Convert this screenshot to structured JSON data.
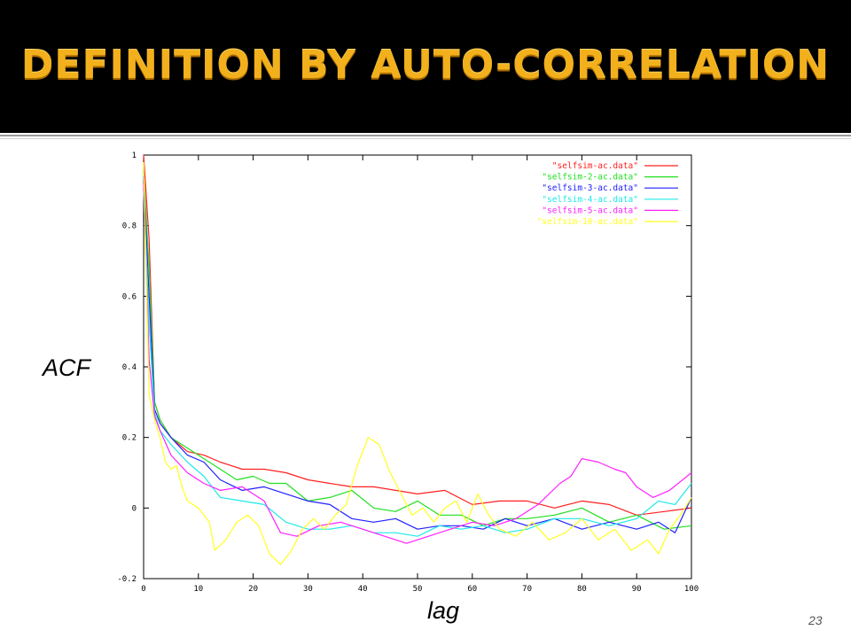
{
  "slide": {
    "title": "DEFINITION BY AUTO-CORRELATION",
    "page_number": "23",
    "colors": {
      "background": "#000000",
      "title": "#f2b01c"
    }
  },
  "chart_data": {
    "type": "line",
    "title": "",
    "xlabel": "lag",
    "ylabel": "ACF",
    "xlim": [
      0,
      100
    ],
    "ylim": [
      -0.2,
      1
    ],
    "x_ticks": [
      0,
      10,
      20,
      30,
      40,
      50,
      60,
      70,
      80,
      90,
      100
    ],
    "y_ticks": [
      -0.2,
      0,
      0.2,
      0.4,
      0.6,
      0.8,
      1
    ],
    "y_tick_labels": [
      "-0.2",
      "0",
      "0.2",
      "0.4",
      "0.6",
      "0.8",
      "1"
    ],
    "grid": false,
    "legend_position": "top-right",
    "series": [
      {
        "name": "\"selfsim-ac.data\"",
        "color": "#ff2020",
        "points": [
          [
            0,
            1
          ],
          [
            1,
            0.76
          ],
          [
            2,
            0.3
          ],
          [
            3,
            0.25
          ],
          [
            5,
            0.2
          ],
          [
            8,
            0.16
          ],
          [
            11,
            0.15
          ],
          [
            14,
            0.13
          ],
          [
            18,
            0.11
          ],
          [
            22,
            0.11
          ],
          [
            26,
            0.1
          ],
          [
            30,
            0.08
          ],
          [
            34,
            0.07
          ],
          [
            38,
            0.06
          ],
          [
            42,
            0.06
          ],
          [
            46,
            0.05
          ],
          [
            50,
            0.04
          ],
          [
            55,
            0.05
          ],
          [
            60,
            0.01
          ],
          [
            65,
            0.02
          ],
          [
            70,
            0.02
          ],
          [
            75,
            0.0
          ],
          [
            80,
            0.02
          ],
          [
            85,
            0.01
          ],
          [
            90,
            -0.02
          ],
          [
            95,
            -0.01
          ],
          [
            100,
            0.0
          ]
        ]
      },
      {
        "name": "\"selfsim-2-ac.data\"",
        "color": "#20e020",
        "points": [
          [
            0,
            0.95
          ],
          [
            1,
            0.68
          ],
          [
            2,
            0.3
          ],
          [
            3,
            0.25
          ],
          [
            5,
            0.2
          ],
          [
            8,
            0.17
          ],
          [
            11,
            0.14
          ],
          [
            14,
            0.11
          ],
          [
            17,
            0.08
          ],
          [
            20,
            0.09
          ],
          [
            23,
            0.07
          ],
          [
            26,
            0.07
          ],
          [
            30,
            0.02
          ],
          [
            34,
            0.03
          ],
          [
            38,
            0.05
          ],
          [
            42,
            0.0
          ],
          [
            46,
            -0.01
          ],
          [
            50,
            0.02
          ],
          [
            54,
            -0.02
          ],
          [
            58,
            -0.02
          ],
          [
            62,
            -0.05
          ],
          [
            66,
            -0.03
          ],
          [
            70,
            -0.03
          ],
          [
            75,
            -0.02
          ],
          [
            80,
            0.0
          ],
          [
            85,
            -0.04
          ],
          [
            90,
            -0.02
          ],
          [
            95,
            -0.06
          ],
          [
            100,
            -0.05
          ]
        ]
      },
      {
        "name": "\"selfsim-3-ac.data\"",
        "color": "#2020ff",
        "points": [
          [
            0,
            0.94
          ],
          [
            1,
            0.6
          ],
          [
            2,
            0.28
          ],
          [
            3,
            0.24
          ],
          [
            5,
            0.2
          ],
          [
            8,
            0.15
          ],
          [
            11,
            0.13
          ],
          [
            14,
            0.08
          ],
          [
            18,
            0.05
          ],
          [
            22,
            0.06
          ],
          [
            26,
            0.04
          ],
          [
            30,
            0.02
          ],
          [
            34,
            0.01
          ],
          [
            38,
            -0.03
          ],
          [
            42,
            -0.04
          ],
          [
            46,
            -0.03
          ],
          [
            50,
            -0.06
          ],
          [
            54,
            -0.05
          ],
          [
            58,
            -0.05
          ],
          [
            62,
            -0.06
          ],
          [
            66,
            -0.03
          ],
          [
            70,
            -0.05
          ],
          [
            75,
            -0.03
          ],
          [
            80,
            -0.06
          ],
          [
            85,
            -0.04
          ],
          [
            90,
            -0.06
          ],
          [
            94,
            -0.04
          ],
          [
            97,
            -0.07
          ],
          [
            100,
            0.03
          ]
        ]
      },
      {
        "name": "\"selfsim-4-ac.data\"",
        "color": "#20e8e8",
        "points": [
          [
            0,
            0.9
          ],
          [
            1,
            0.52
          ],
          [
            2,
            0.27
          ],
          [
            3,
            0.22
          ],
          [
            5,
            0.18
          ],
          [
            8,
            0.13
          ],
          [
            11,
            0.09
          ],
          [
            14,
            0.03
          ],
          [
            18,
            0.02
          ],
          [
            22,
            0.01
          ],
          [
            26,
            -0.04
          ],
          [
            30,
            -0.06
          ],
          [
            34,
            -0.06
          ],
          [
            38,
            -0.05
          ],
          [
            42,
            -0.07
          ],
          [
            46,
            -0.07
          ],
          [
            50,
            -0.08
          ],
          [
            54,
            -0.05
          ],
          [
            58,
            -0.06
          ],
          [
            62,
            -0.05
          ],
          [
            66,
            -0.07
          ],
          [
            70,
            -0.06
          ],
          [
            75,
            -0.03
          ],
          [
            80,
            -0.03
          ],
          [
            85,
            -0.05
          ],
          [
            90,
            -0.03
          ],
          [
            94,
            0.02
          ],
          [
            97,
            0.01
          ],
          [
            100,
            0.07
          ]
        ]
      },
      {
        "name": "\"selfsim-5-ac.data\"",
        "color": "#ff20ff",
        "points": [
          [
            0,
            0.92
          ],
          [
            1,
            0.42
          ],
          [
            2,
            0.26
          ],
          [
            3,
            0.22
          ],
          [
            5,
            0.15
          ],
          [
            8,
            0.1
          ],
          [
            11,
            0.07
          ],
          [
            14,
            0.05
          ],
          [
            18,
            0.06
          ],
          [
            22,
            0.02
          ],
          [
            25,
            -0.07
          ],
          [
            28,
            -0.08
          ],
          [
            32,
            -0.05
          ],
          [
            36,
            -0.04
          ],
          [
            40,
            -0.06
          ],
          [
            44,
            -0.08
          ],
          [
            48,
            -0.1
          ],
          [
            52,
            -0.08
          ],
          [
            56,
            -0.06
          ],
          [
            60,
            -0.04
          ],
          [
            64,
            -0.05
          ],
          [
            68,
            -0.03
          ],
          [
            72,
            0.01
          ],
          [
            76,
            0.07
          ],
          [
            78,
            0.09
          ],
          [
            80,
            0.14
          ],
          [
            83,
            0.13
          ],
          [
            86,
            0.11
          ],
          [
            88,
            0.1
          ],
          [
            90,
            0.06
          ],
          [
            93,
            0.03
          ],
          [
            96,
            0.05
          ],
          [
            100,
            0.1
          ]
        ]
      },
      {
        "name": "\"selfsim-10-ac.data\"",
        "color": "#ffff20",
        "points": [
          [
            0,
            0.98
          ],
          [
            1,
            0.32
          ],
          [
            2,
            0.25
          ],
          [
            3,
            0.2
          ],
          [
            4,
            0.13
          ],
          [
            5,
            0.11
          ],
          [
            6,
            0.12
          ],
          [
            7,
            0.06
          ],
          [
            8,
            0.02
          ],
          [
            10,
            0.0
          ],
          [
            12,
            -0.04
          ],
          [
            13,
            -0.12
          ],
          [
            15,
            -0.09
          ],
          [
            17,
            -0.04
          ],
          [
            19,
            -0.02
          ],
          [
            21,
            -0.05
          ],
          [
            23,
            -0.13
          ],
          [
            25,
            -0.16
          ],
          [
            27,
            -0.12
          ],
          [
            29,
            -0.06
          ],
          [
            31,
            -0.03
          ],
          [
            33,
            -0.06
          ],
          [
            35,
            -0.02
          ],
          [
            37,
            0.01
          ],
          [
            39,
            0.12
          ],
          [
            41,
            0.2
          ],
          [
            43,
            0.18
          ],
          [
            45,
            0.1
          ],
          [
            47,
            0.04
          ],
          [
            49,
            -0.02
          ],
          [
            51,
            0.0
          ],
          [
            53,
            -0.04
          ],
          [
            55,
            0.0
          ],
          [
            57,
            0.02
          ],
          [
            59,
            -0.04
          ],
          [
            61,
            0.04
          ],
          [
            63,
            -0.02
          ],
          [
            65,
            -0.06
          ],
          [
            68,
            -0.08
          ],
          [
            71,
            -0.04
          ],
          [
            74,
            -0.09
          ],
          [
            77,
            -0.07
          ],
          [
            80,
            -0.03
          ],
          [
            83,
            -0.09
          ],
          [
            86,
            -0.06
          ],
          [
            89,
            -0.12
          ],
          [
            92,
            -0.09
          ],
          [
            94,
            -0.13
          ],
          [
            96,
            -0.06
          ],
          [
            98,
            -0.02
          ],
          [
            100,
            0.03
          ]
        ]
      }
    ]
  }
}
